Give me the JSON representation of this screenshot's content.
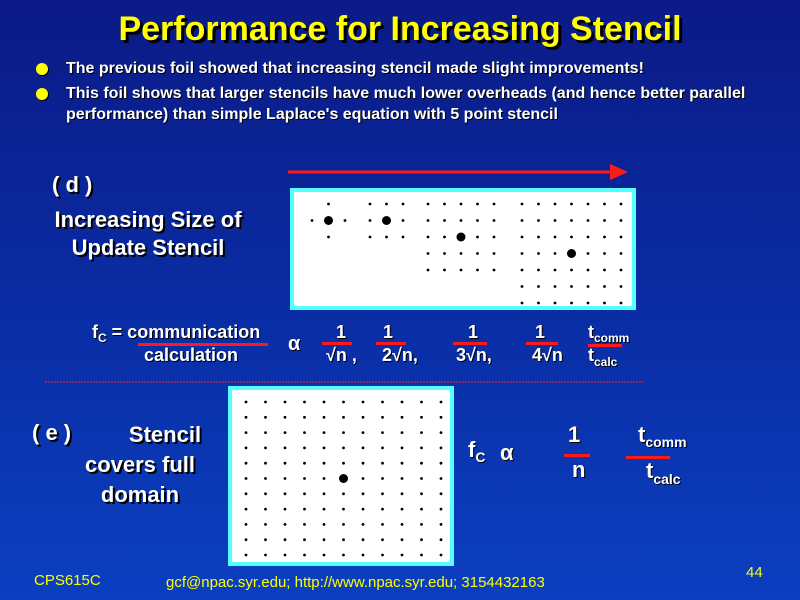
{
  "title": "Performance for Increasing Stencil",
  "bullets": [
    "The previous foil showed that increasing stencil made slight improvements!",
    "This foil shows that larger stencils have much lower overheads (and hence better parallel performance) than simple Laplace's equation with 5 point stencil"
  ],
  "section_d": {
    "label": "( d )",
    "title_line1": "Increasing Size of",
    "title_line2": "Update Stencil"
  },
  "formula_d": {
    "fc": "f",
    "fc_sub": "C",
    "eq": " = communication",
    "den": "calculation",
    "alpha": "α",
    "terms": [
      {
        "num": "1",
        "den": "√n ,"
      },
      {
        "num": "1",
        "den": "2√n,"
      },
      {
        "num": "1",
        "den": "3√n,"
      },
      {
        "num": "1",
        "den": "4√n"
      }
    ],
    "t": "t",
    "tcomm": "comm",
    "tcalc": "calc"
  },
  "section_e": {
    "label": "( e )",
    "line1": "Stencil",
    "line2": "covers full",
    "line3": "domain"
  },
  "formula_e": {
    "fc": "f",
    "fc_sub": "C",
    "alpha": "α",
    "num": "1",
    "den": "n",
    "t": "t",
    "tcomm": "comm",
    "tcalc": "calc"
  },
  "footer": {
    "course": "CPS615C",
    "contact": "gcf@npac.syr.edu; http://www.npac.syr.edu; 3154432163",
    "page": "44"
  },
  "colors": {
    "title": "#ffff00",
    "accent_red": "#ff1a1a",
    "panel_border": "#55ffff"
  }
}
